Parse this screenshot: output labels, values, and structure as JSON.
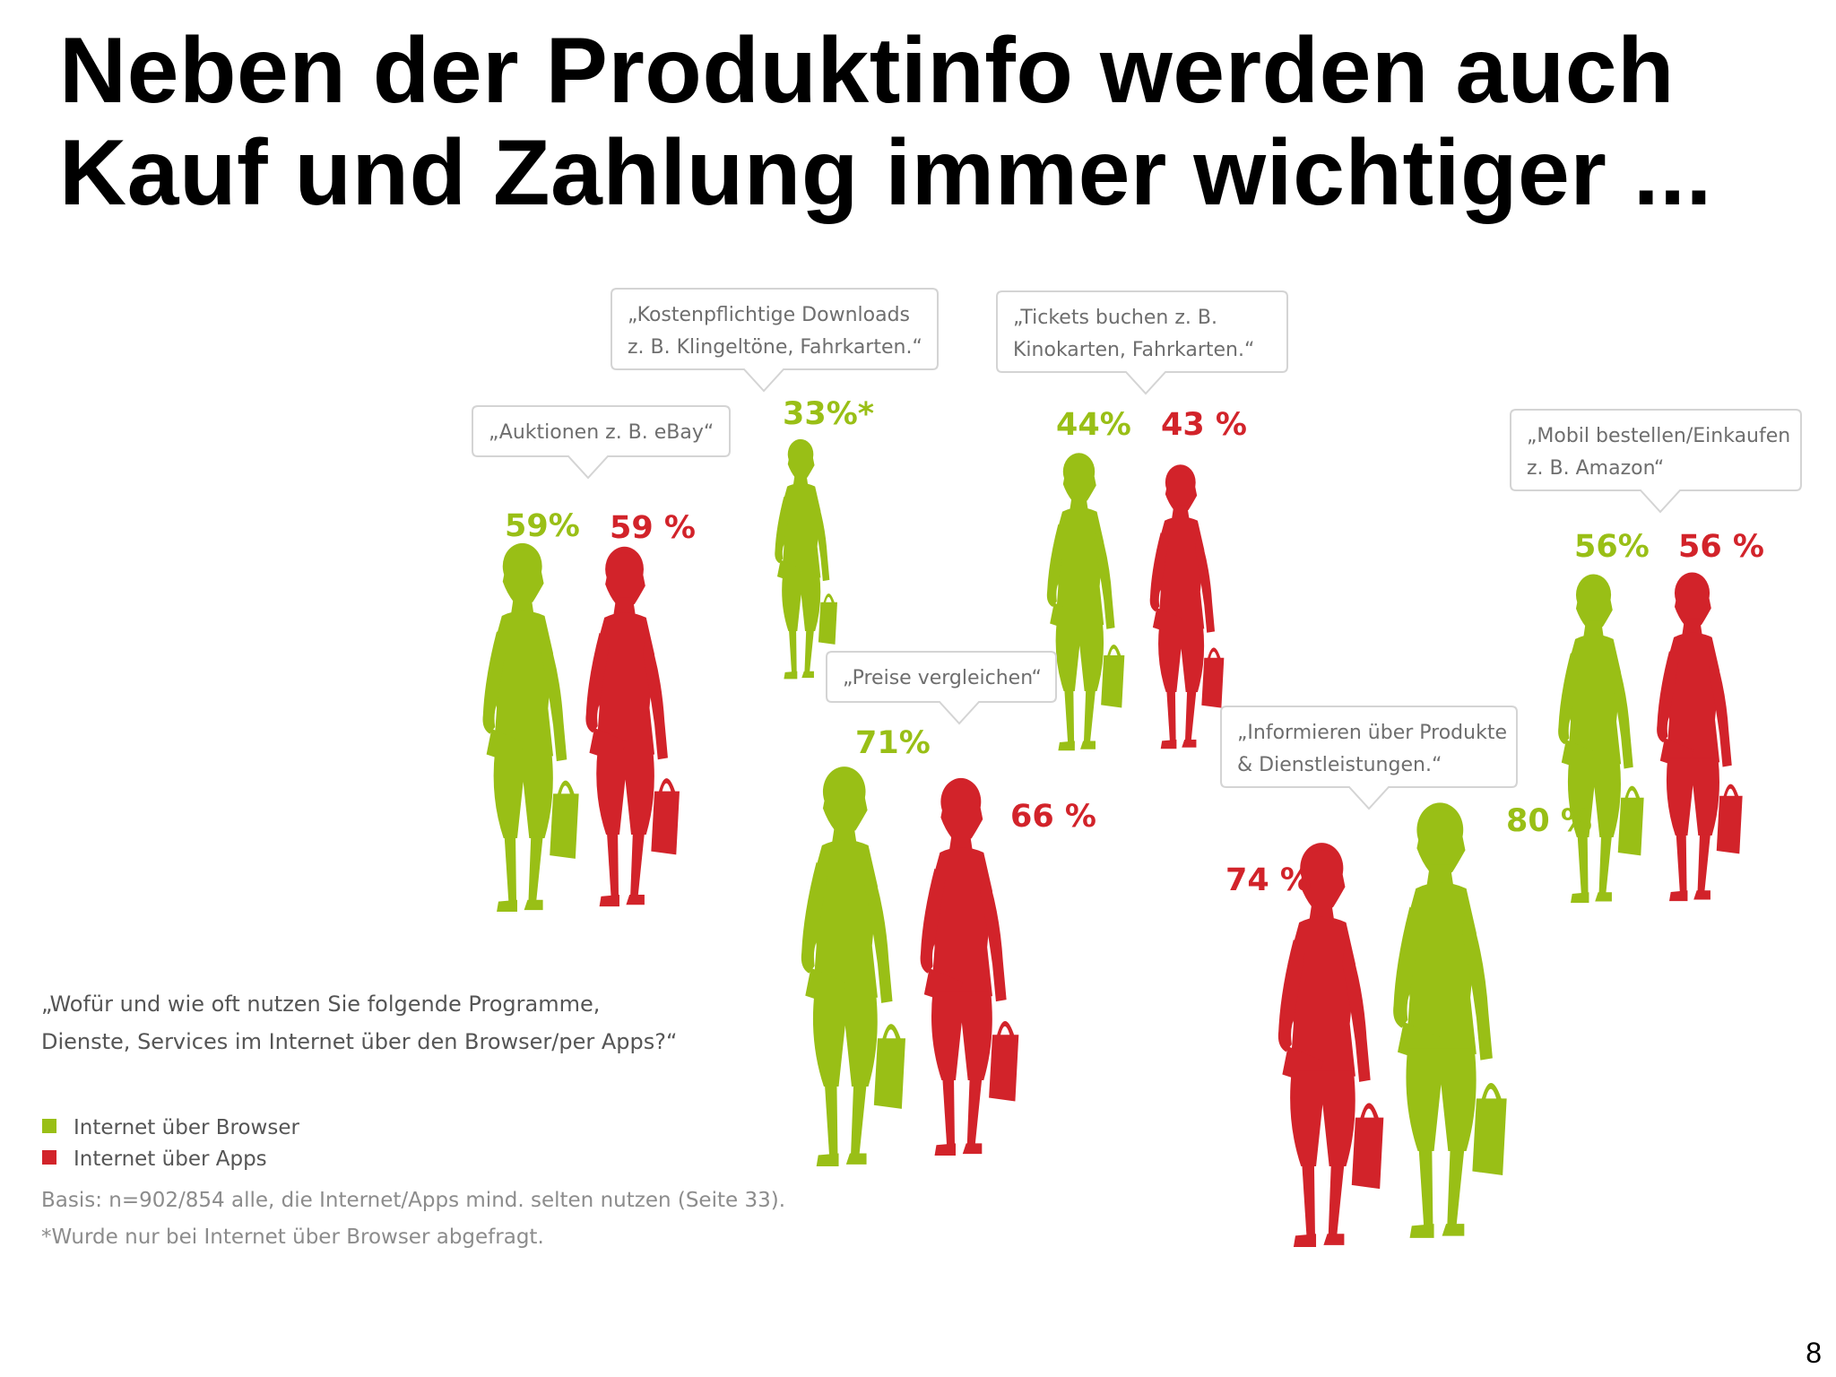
{
  "title": "Neben der Produktinfo werden auch Kauf und Zahlung immer wichtiger ...",
  "page_number": "8",
  "question": {
    "line1": "„Wofür und wie oft nutzen Sie folgende Programme,",
    "line2": "Dienste, Services im Internet über den Browser/per Apps?“"
  },
  "legend": [
    {
      "label": "Internet über Browser",
      "color": "#99bf16"
    },
    {
      "label": "Internet über Apps",
      "color": "#d2232a"
    }
  ],
  "notes": {
    "basis": "Basis: n=902/854 alle, die Internet/Apps mind. selten nutzen (Seite 33).",
    "asterisk": "*Wurde nur bei Internet über Browser abgefragt."
  },
  "colors": {
    "browser": "#99bf16",
    "apps": "#d2232a",
    "figure_icon": "woman-shopper-silhouette-icon"
  },
  "chart_data": {
    "type": "pictograph",
    "series": [
      {
        "name": "Internet über Browser",
        "color": "#99bf16"
      },
      {
        "name": "Internet über Apps",
        "color": "#d2232a"
      }
    ],
    "categories": [
      {
        "lines": [
          "„Auktionen z. B. eBay“"
        ],
        "browser": 59,
        "browser_label": "59%",
        "apps": 59,
        "apps_label": "59 %"
      },
      {
        "lines": [
          "„Kostenpflichtige Downloads",
          "z. B. Klingeltöne, Fahrkarten.“"
        ],
        "browser": 33,
        "browser_label": "33%*",
        "apps": null,
        "apps_label": ""
      },
      {
        "lines": [
          "„Preise vergleichen“"
        ],
        "browser": 71,
        "browser_label": "71%",
        "apps": 66,
        "apps_label": "66 %"
      },
      {
        "lines": [
          "„Tickets buchen z. B.",
          "Kinokarten, Fahrkarten.“"
        ],
        "browser": 44,
        "browser_label": "44%",
        "apps": 43,
        "apps_label": "43 %"
      },
      {
        "lines": [
          "„Informieren über Produkte",
          "& Dienstleistungen.“"
        ],
        "browser": 80,
        "browser_label": "80 %",
        "apps": 74,
        "apps_label": "74 %"
      },
      {
        "lines": [
          "„Mobil bestellen/Einkaufen",
          "z. B. Amazon“"
        ],
        "browser": 56,
        "browser_label": "56%",
        "apps": 56,
        "apps_label": "56 %"
      }
    ]
  }
}
